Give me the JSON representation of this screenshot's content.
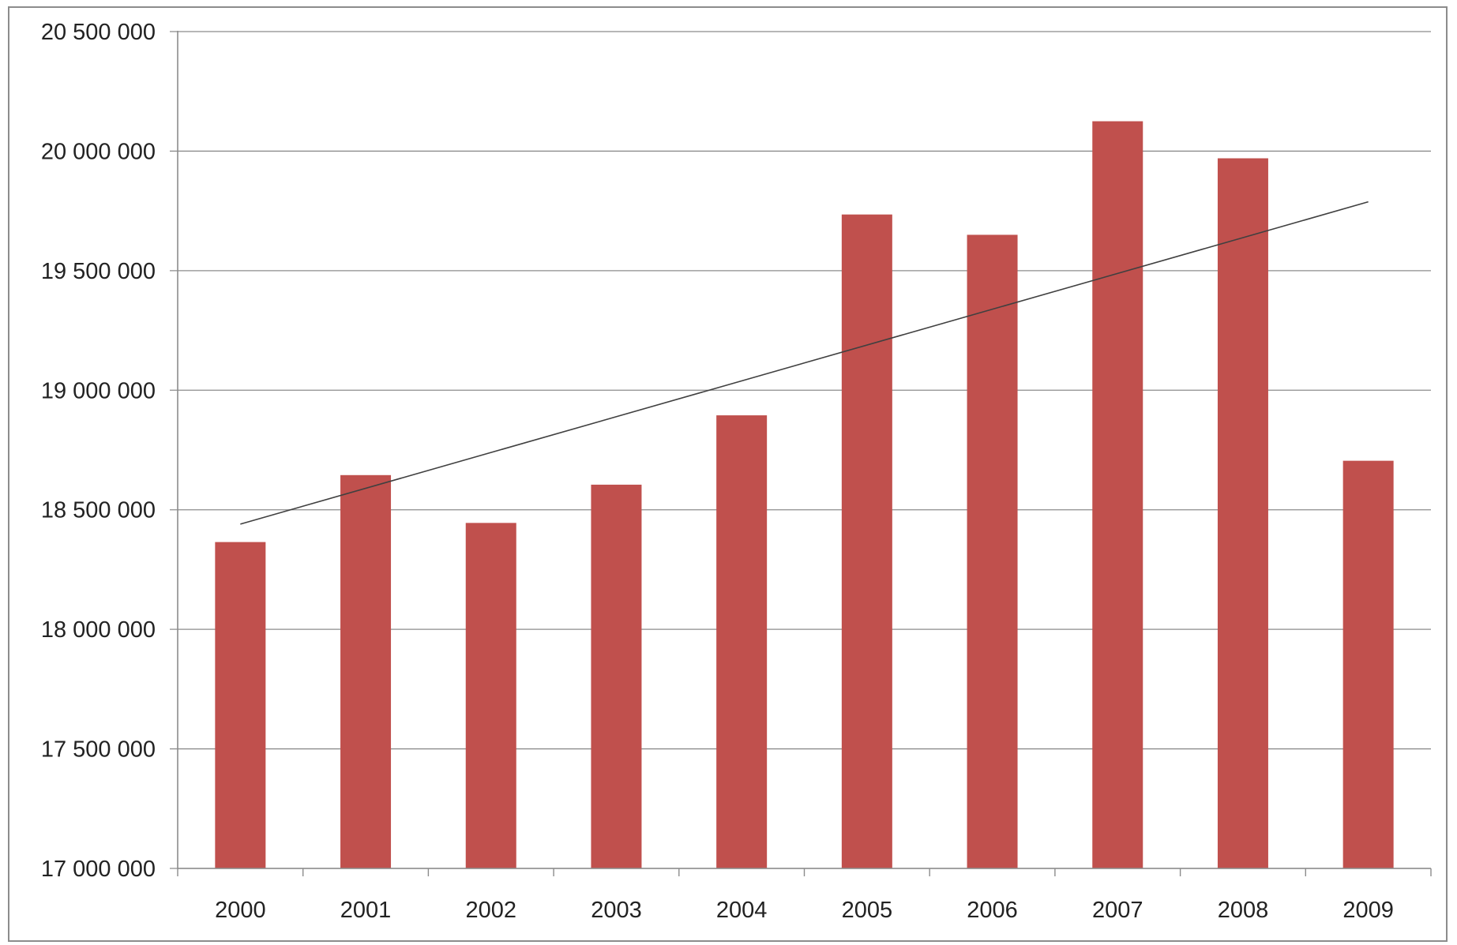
{
  "chart_data": {
    "type": "bar",
    "title": "",
    "xlabel": "",
    "ylabel": "",
    "categories": [
      "2000",
      "2001",
      "2002",
      "2003",
      "2004",
      "2005",
      "2006",
      "2007",
      "2008",
      "2009"
    ],
    "series": [
      {
        "values": [
          18365000,
          18645000,
          18445000,
          18605000,
          18895000,
          19735000,
          19650000,
          20125000,
          19970000,
          18705000
        ],
        "color": "#c0504d"
      }
    ],
    "trendline": {
      "type": "linear",
      "color": "#404040"
    },
    "ylim": [
      17000000,
      20500000
    ],
    "yticks": [
      17000000,
      17500000,
      18000000,
      18500000,
      19000000,
      19500000,
      20000000,
      20500000
    ],
    "ytick_labels": [
      "17 000 000",
      "17 500 000",
      "18 000 000",
      "18 500 000",
      "19 000 000",
      "19 500 000",
      "20 000 000",
      "20 500 000"
    ],
    "grid": true,
    "legend": "none"
  }
}
